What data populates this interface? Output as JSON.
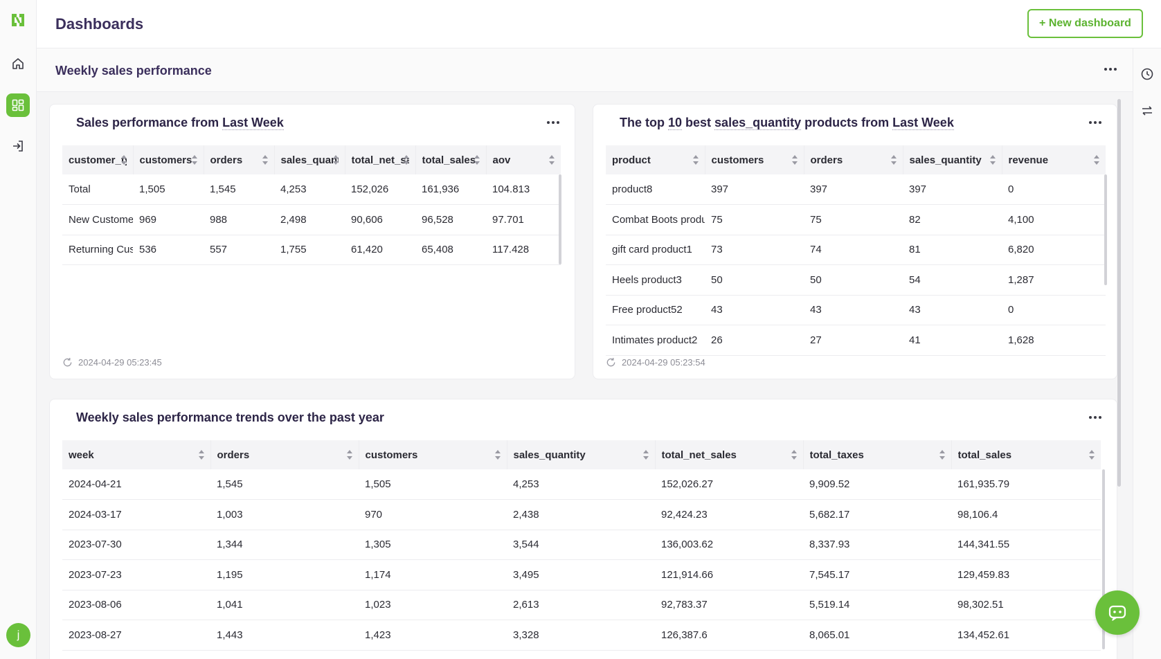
{
  "header": {
    "title": "Dashboards",
    "new_button": "+ New dashboard"
  },
  "dashboard": {
    "name": "Weekly sales performance"
  },
  "user": {
    "initial": "j"
  },
  "colors": {
    "accent": "#6ac03b",
    "title": "#3b2f5c"
  },
  "icons": {
    "rail": [
      "logo-icon",
      "home-icon",
      "dashboard-icon",
      "login-icon"
    ],
    "right_rail": [
      "clock-icon",
      "swap-icon"
    ],
    "fab": "chat-bot-icon"
  },
  "card1": {
    "title_pre": "Sales performance from ",
    "title_u": "Last Week",
    "columns": [
      "customer_type",
      "customers",
      "orders",
      "sales_quantity",
      "total_net_sales",
      "total_sales",
      "aov"
    ],
    "rows": [
      [
        "Total",
        "1,505",
        "1,545",
        "4,253",
        "152,026",
        "161,936",
        "104.813"
      ],
      [
        "New Customer",
        "969",
        "988",
        "2,498",
        "90,606",
        "96,528",
        "97.701"
      ],
      [
        "Returning Customer",
        "536",
        "557",
        "1,755",
        "61,420",
        "65,408",
        "117.428"
      ]
    ],
    "refreshed": "2024-04-29 05:23:45"
  },
  "card2": {
    "title_a": "The top ",
    "title_u1": "10",
    "title_b": " best ",
    "title_u2": "sales_quantity",
    "title_c": " products from ",
    "title_u3": "Last Week",
    "columns": [
      "product",
      "customers",
      "orders",
      "sales_quantity",
      "revenue"
    ],
    "rows": [
      [
        "product8",
        "397",
        "397",
        "397",
        "0"
      ],
      [
        "Combat Boots product",
        "75",
        "75",
        "82",
        "4,100"
      ],
      [
        "gift card product1",
        "73",
        "74",
        "81",
        "6,820"
      ],
      [
        "Heels product3",
        "50",
        "50",
        "54",
        "1,287"
      ],
      [
        "Free product52",
        "43",
        "43",
        "43",
        "0"
      ],
      [
        "Intimates product2",
        "26",
        "27",
        "41",
        "1,628"
      ]
    ],
    "refreshed": "2024-04-29 05:23:54"
  },
  "card3": {
    "title": "Weekly sales performance trends over the past year",
    "columns": [
      "week",
      "orders",
      "customers",
      "sales_quantity",
      "total_net_sales",
      "total_taxes",
      "total_sales"
    ],
    "rows": [
      [
        "2024-04-21",
        "1,545",
        "1,505",
        "4,253",
        "152,026.27",
        "9,909.52",
        "161,935.79"
      ],
      [
        "2024-03-17",
        "1,003",
        "970",
        "2,438",
        "92,424.23",
        "5,682.17",
        "98,106.4"
      ],
      [
        "2023-07-30",
        "1,344",
        "1,305",
        "3,544",
        "136,003.62",
        "8,337.93",
        "144,341.55"
      ],
      [
        "2023-07-23",
        "1,195",
        "1,174",
        "3,495",
        "121,914.66",
        "7,545.17",
        "129,459.83"
      ],
      [
        "2023-08-06",
        "1,041",
        "1,023",
        "2,613",
        "92,783.37",
        "5,519.14",
        "98,302.51"
      ],
      [
        "2023-08-27",
        "1,443",
        "1,423",
        "3,328",
        "126,387.6",
        "8,065.01",
        "134,452.61"
      ]
    ]
  }
}
